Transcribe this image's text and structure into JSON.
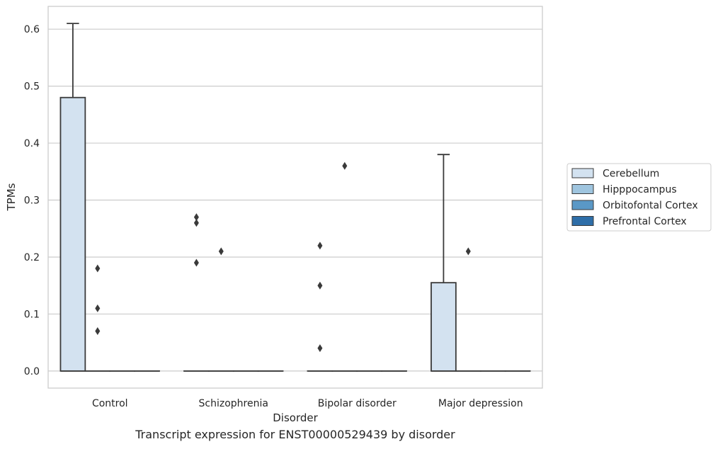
{
  "chart_data": {
    "type": "box",
    "xlabel": "Disorder",
    "ylabel": "TPMs",
    "caption": "Transcript expression for ENST00000529439 by disorder",
    "ylim": [
      -0.03,
      0.64
    ],
    "yticks": [
      "0.0",
      "0.1",
      "0.2",
      "0.3",
      "0.4",
      "0.5",
      "0.6"
    ],
    "grid": true,
    "legend_position": "right",
    "categories": [
      "Control",
      "Schizophrenia",
      "Bipolar disorder",
      "Major depression"
    ],
    "series": [
      {
        "name": "Cerebellum",
        "color": "#d3e2f0",
        "boxes": [
          {
            "q1": 0.0,
            "median": 0.0,
            "q3": 0.48,
            "whisker_low": 0.0,
            "whisker_high": 0.61,
            "outliers": []
          },
          {
            "q1": 0.0,
            "median": 0.0,
            "q3": 0.0,
            "whisker_low": 0.0,
            "whisker_high": 0.0,
            "outliers": [
              0.27,
              0.26,
              0.19
            ]
          },
          {
            "q1": 0.0,
            "median": 0.0,
            "q3": 0.0,
            "whisker_low": 0.0,
            "whisker_high": 0.0,
            "outliers": [
              0.22,
              0.15,
              0.04
            ]
          },
          {
            "q1": 0.0,
            "median": 0.0,
            "q3": 0.155,
            "whisker_low": 0.0,
            "whisker_high": 0.38,
            "outliers": []
          }
        ]
      },
      {
        "name": "Hipppocampus",
        "color": "#9fc5df",
        "boxes": [
          {
            "q1": 0.0,
            "median": 0.0,
            "q3": 0.0,
            "whisker_low": 0.0,
            "whisker_high": 0.0,
            "outliers": [
              0.18,
              0.11,
              0.07
            ]
          },
          {
            "q1": 0.0,
            "median": 0.0,
            "q3": 0.0,
            "whisker_low": 0.0,
            "whisker_high": 0.0,
            "outliers": [
              0.21
            ]
          },
          {
            "q1": 0.0,
            "median": 0.0,
            "q3": 0.0,
            "whisker_low": 0.0,
            "whisker_high": 0.0,
            "outliers": [
              0.36
            ]
          },
          {
            "q1": 0.0,
            "median": 0.0,
            "q3": 0.0,
            "whisker_low": 0.0,
            "whisker_high": 0.0,
            "outliers": [
              0.21
            ]
          }
        ]
      },
      {
        "name": "Orbitofontal Cortex",
        "color": "#5a98c6",
        "boxes": [
          {
            "q1": 0.0,
            "median": 0.0,
            "q3": 0.0,
            "whisker_low": 0.0,
            "whisker_high": 0.0,
            "outliers": []
          },
          {
            "q1": 0.0,
            "median": 0.0,
            "q3": 0.0,
            "whisker_low": 0.0,
            "whisker_high": 0.0,
            "outliers": []
          },
          {
            "q1": 0.0,
            "median": 0.0,
            "q3": 0.0,
            "whisker_low": 0.0,
            "whisker_high": 0.0,
            "outliers": []
          },
          {
            "q1": 0.0,
            "median": 0.0,
            "q3": 0.0,
            "whisker_low": 0.0,
            "whisker_high": 0.0,
            "outliers": []
          }
        ]
      },
      {
        "name": "Prefrontal Cortex",
        "color": "#2e6ea8",
        "boxes": [
          {
            "q1": 0.0,
            "median": 0.0,
            "q3": 0.0,
            "whisker_low": 0.0,
            "whisker_high": 0.0,
            "outliers": []
          },
          {
            "q1": 0.0,
            "median": 0.0,
            "q3": 0.0,
            "whisker_low": 0.0,
            "whisker_high": 0.0,
            "outliers": []
          },
          {
            "q1": 0.0,
            "median": 0.0,
            "q3": 0.0,
            "whisker_low": 0.0,
            "whisker_high": 0.0,
            "outliers": []
          },
          {
            "q1": 0.0,
            "median": 0.0,
            "q3": 0.0,
            "whisker_low": 0.0,
            "whisker_high": 0.0,
            "outliers": []
          }
        ]
      }
    ]
  }
}
